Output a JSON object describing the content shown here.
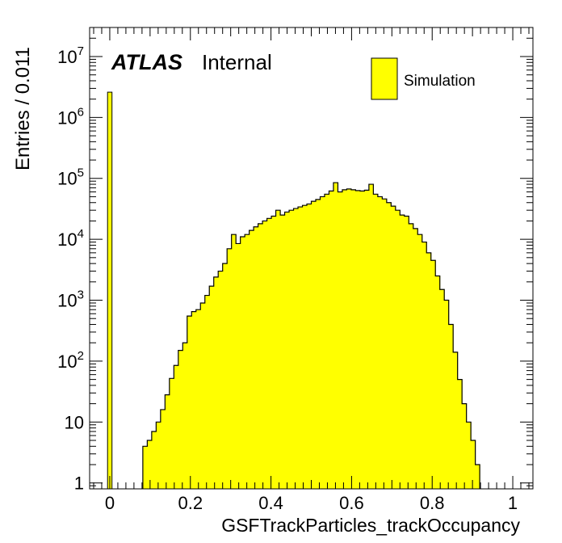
{
  "chart_data": {
    "type": "histogram",
    "xlabel": "GSFTrackParticles_trackOccupancy",
    "ylabel": "Entries / 0.011",
    "xlim": [
      -0.05,
      1.05
    ],
    "ylim": [
      0.8,
      30000000
    ],
    "y_scale": "log",
    "x_ticks": [
      {
        "value": 0,
        "label": "0"
      },
      {
        "value": 0.2,
        "label": "0.2"
      },
      {
        "value": 0.4,
        "label": "0.4"
      },
      {
        "value": 0.6,
        "label": "0.6"
      },
      {
        "value": 0.8,
        "label": "0.8"
      },
      {
        "value": 1,
        "label": "1"
      }
    ],
    "y_ticks": [
      {
        "value": 1,
        "base": "1",
        "exp": ""
      },
      {
        "value": 10,
        "base": "10",
        "exp": ""
      },
      {
        "value": 100,
        "base": "10",
        "exp": "2"
      },
      {
        "value": 1000,
        "base": "10",
        "exp": "3"
      },
      {
        "value": 10000,
        "base": "10",
        "exp": "4"
      },
      {
        "value": 100000,
        "base": "10",
        "exp": "5"
      },
      {
        "value": 1000000,
        "base": "10",
        "exp": "6"
      },
      {
        "value": 10000000,
        "base": "10",
        "exp": "7"
      }
    ],
    "bin_width": 0.011,
    "bin_start": -0.0055,
    "spike": {
      "value": 2600000
    },
    "bins_from": 0.082,
    "values": [
      4,
      5,
      7,
      10,
      16,
      28,
      52,
      85,
      150,
      200,
      550,
      650,
      700,
      900,
      1200,
      1700,
      2400,
      3000,
      4000,
      7000,
      12000,
      8500,
      11000,
      12000,
      14000,
      16000,
      18000,
      20000,
      22000,
      24000,
      30000,
      25000,
      28000,
      30000,
      32000,
      34000,
      36000,
      38000,
      42000,
      45000,
      50000,
      55000,
      62000,
      85000,
      60000,
      65000,
      67000,
      65000,
      63000,
      62000,
      64000,
      80000,
      55000,
      50000,
      46000,
      40000,
      35000,
      30000,
      25000,
      24000,
      18000,
      15000,
      12000,
      9000,
      6000,
      4500,
      2500,
      1500,
      1000,
      400,
      140,
      50,
      20,
      10,
      5,
      2
    ],
    "legend": [
      {
        "name": "Simulation",
        "color": "#ffff00"
      }
    ],
    "legend_position": "top-right",
    "fill_color": "#ffff00",
    "line_color": "#000000"
  },
  "annotations": {
    "atlas": "ATLAS",
    "internal": "Internal"
  }
}
